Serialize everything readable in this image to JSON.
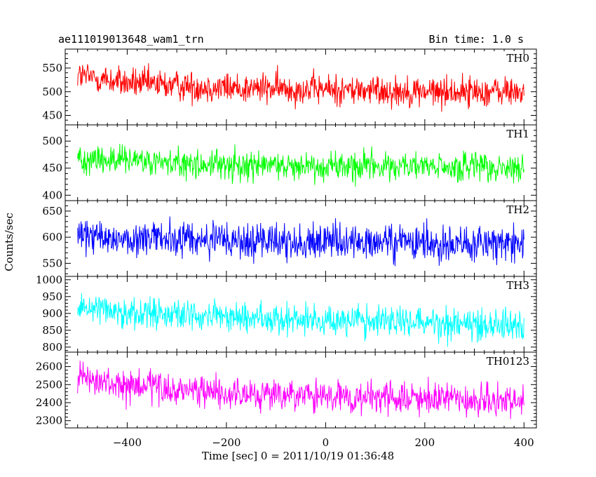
{
  "header": {
    "title": "ae111019013648_wam1_trn",
    "bin_time": "Bin time: 1.0 s"
  },
  "chart_data": {
    "type": "line",
    "title": "ae111019013648_wam1_trn",
    "subtitle": "Bin time: 1.0 s",
    "xlabel": "Time [sec] 0 = 2011/10/19 01:36:48",
    "ylabel": "Counts/sec",
    "xlim": [
      -525,
      425
    ],
    "x_ticks": [
      -400,
      -200,
      0,
      200,
      400
    ],
    "x_range_data": [
      -500,
      400
    ],
    "bin_time_s": 1.0,
    "grid": false,
    "panels": [
      {
        "name": "TH0",
        "color": "#ff0000",
        "ylim": [
          430,
          590
        ],
        "y_ticks": [
          450,
          500,
          550
        ],
        "trend": [
          [
            -500,
            535
          ],
          [
            -400,
            518
          ],
          [
            -200,
            508
          ],
          [
            0,
            505
          ],
          [
            200,
            500
          ],
          [
            400,
            500
          ]
        ],
        "amplitude": 35
      },
      {
        "name": "TH1",
        "color": "#00ff00",
        "ylim": [
          390,
          530
        ],
        "y_ticks": [
          400,
          450,
          500
        ],
        "trend": [
          [
            -500,
            470
          ],
          [
            -400,
            462
          ],
          [
            -200,
            455
          ],
          [
            0,
            455
          ],
          [
            200,
            452
          ],
          [
            400,
            448
          ]
        ],
        "amplitude": 30
      },
      {
        "name": "TH2",
        "color": "#0000ff",
        "ylim": [
          525,
          670
        ],
        "y_ticks": [
          550,
          600,
          650
        ],
        "trend": [
          [
            -500,
            600
          ],
          [
            -400,
            598
          ],
          [
            -200,
            593
          ],
          [
            0,
            590
          ],
          [
            200,
            588
          ],
          [
            400,
            588
          ]
        ],
        "amplitude": 38
      },
      {
        "name": "TH3",
        "color": "#00ffff",
        "ylim": [
          785,
          1010
        ],
        "y_ticks": [
          800,
          850,
          900,
          950,
          1000
        ],
        "trend": [
          [
            -500,
            925
          ],
          [
            -400,
            905
          ],
          [
            -200,
            890
          ],
          [
            0,
            880
          ],
          [
            200,
            875
          ],
          [
            400,
            865
          ]
        ],
        "amplitude": 50
      },
      {
        "name": "TH0123",
        "color": "#ff00ff",
        "ylim": [
          2260,
          2680
        ],
        "y_ticks": [
          2300,
          2400,
          2500,
          2600
        ],
        "trend": [
          [
            -500,
            2530
          ],
          [
            -400,
            2490
          ],
          [
            -200,
            2450
          ],
          [
            0,
            2430
          ],
          [
            200,
            2420
          ],
          [
            400,
            2400
          ]
        ],
        "amplitude": 95
      }
    ]
  }
}
